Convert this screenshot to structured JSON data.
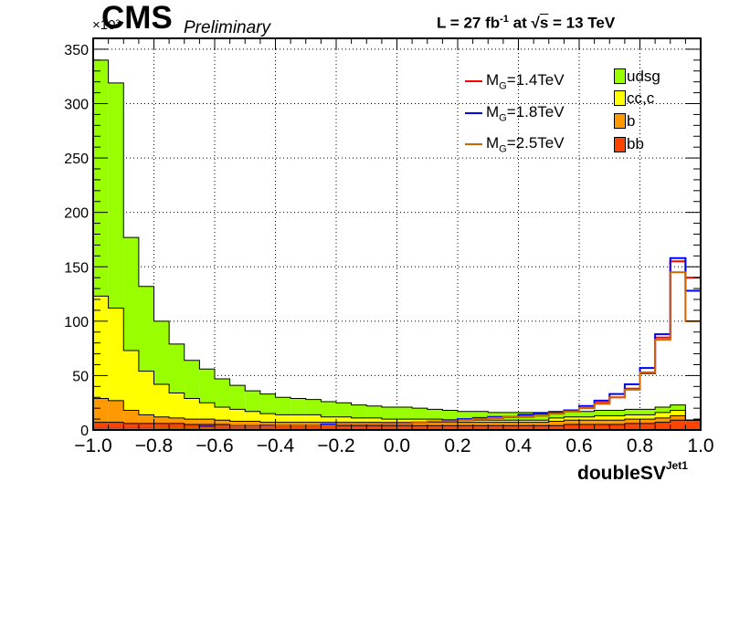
{
  "header": {
    "experiment": "CMS",
    "status": "Preliminary",
    "lumi_prefix": "L = 27 fb",
    "lumi_exp": "-1",
    "lumi_mid": " at  ",
    "sqrt_symbol": "√",
    "sqrt_arg": "s",
    "energy": " = 13 TeV",
    "y_exponent": "×10³"
  },
  "chart_data": {
    "type": "bar",
    "stacked": true,
    "xlabel": "doubleSV",
    "xlabel_sup": "Jet1",
    "ylabel": "",
    "xlim": [
      -1.0,
      1.0
    ],
    "ylim": [
      0,
      360
    ],
    "y_unit_multiplier": "×10³",
    "grid": true,
    "x_ticks": [
      "−1.0",
      "−0.8",
      "−0.6",
      "−0.4",
      "−0.2",
      "0.0",
      "0.2",
      "0.4",
      "0.6",
      "0.8",
      "1.0"
    ],
    "x_tick_values": [
      -1.0,
      -0.8,
      -0.6,
      -0.4,
      -0.2,
      0.0,
      0.2,
      0.4,
      0.6,
      0.8,
      1.0
    ],
    "y_ticks": [
      "0",
      "50",
      "100",
      "150",
      "200",
      "250",
      "300",
      "350"
    ],
    "y_tick_values": [
      0,
      50,
      100,
      150,
      200,
      250,
      300,
      350
    ],
    "bin_width": 0.05,
    "bin_lows": [
      -1.0,
      -0.95,
      -0.9,
      -0.85,
      -0.8,
      -0.75,
      -0.7,
      -0.65,
      -0.6,
      -0.55,
      -0.5,
      -0.45,
      -0.4,
      -0.35,
      -0.3,
      -0.25,
      -0.2,
      -0.15,
      -0.1,
      -0.05,
      0.0,
      0.05,
      0.1,
      0.15,
      0.2,
      0.25,
      0.3,
      0.35,
      0.4,
      0.45,
      0.5,
      0.55,
      0.6,
      0.65,
      0.7,
      0.75,
      0.8,
      0.85,
      0.9,
      0.95
    ],
    "stack": [
      {
        "name": "bb",
        "color": "#ff4400",
        "values": [
          7,
          7,
          6,
          6,
          6,
          6,
          5,
          5,
          5,
          4,
          4,
          4,
          4,
          4,
          4,
          4,
          4,
          4,
          4,
          4,
          4,
          4,
          4,
          4,
          4,
          4,
          4,
          4,
          4,
          4,
          4,
          5,
          5,
          5,
          5,
          6,
          6,
          7,
          9,
          9
        ]
      },
      {
        "name": "b",
        "color": "#ff9900",
        "values": [
          22,
          20,
          12,
          8,
          6,
          5,
          5,
          5,
          4,
          4,
          4,
          3,
          3,
          3,
          3,
          3,
          3,
          3,
          3,
          3,
          3,
          3,
          3,
          3,
          3,
          3,
          3,
          3,
          3,
          3,
          4,
          4,
          4,
          4,
          4,
          4,
          4,
          4,
          4,
          0
        ]
      },
      {
        "name": "cc,c",
        "color": "#ffff00",
        "values": [
          94,
          85,
          55,
          40,
          30,
          23,
          19,
          15,
          12,
          11,
          9,
          8,
          7,
          7,
          7,
          5,
          5,
          4,
          4,
          3,
          3,
          3,
          3,
          2,
          2,
          2,
          2,
          2,
          2,
          2,
          3,
          3,
          3,
          4,
          4,
          4,
          4,
          5,
          5,
          0
        ]
      },
      {
        "name": "udsg",
        "color": "#99ff00",
        "values": [
          217,
          207,
          104,
          78,
          58,
          45,
          35,
          31,
          26,
          22,
          19,
          18,
          16,
          15,
          14,
          14,
          13,
          12,
          11,
          11,
          11,
          10,
          9,
          9,
          8,
          8,
          7,
          7,
          7,
          7,
          6,
          5,
          5,
          5,
          5,
          5,
          5,
          5,
          5,
          0
        ]
      }
    ],
    "signals": [
      {
        "name": "M_G=1.4TeV",
        "label_main": "M",
        "label_sub": "G",
        "label_rest": "=1.4TeV",
        "color": "#ff0000",
        "values": [
          1,
          1,
          1,
          1,
          2,
          2,
          2,
          3,
          3,
          3,
          3,
          3,
          4,
          4,
          4,
          4,
          5,
          5,
          5,
          6,
          6,
          7,
          8,
          8,
          9,
          10,
          11,
          12,
          12,
          13,
          15,
          17,
          20,
          25,
          30,
          38,
          52,
          85,
          155,
          140
        ]
      },
      {
        "name": "M_G=1.8TeV",
        "label_main": "M",
        "label_sub": "G",
        "label_rest": "=1.8TeV",
        "color": "#0000ff",
        "values": [
          1,
          1,
          1,
          1,
          2,
          2,
          2,
          3,
          3,
          3,
          3,
          4,
          4,
          4,
          4,
          5,
          5,
          5,
          5,
          6,
          6,
          7,
          8,
          9,
          10,
          11,
          12,
          12,
          14,
          15,
          16,
          18,
          22,
          27,
          33,
          42,
          57,
          88,
          158,
          128
        ]
      },
      {
        "name": "M_G=2.5TeV",
        "label_main": "M",
        "label_sub": "G",
        "label_rest": "=2.5TeV",
        "color": "#cc6600",
        "values": [
          1,
          1,
          1,
          1,
          2,
          2,
          2,
          2,
          3,
          3,
          3,
          3,
          4,
          4,
          4,
          4,
          5,
          5,
          5,
          6,
          6,
          7,
          8,
          8,
          9,
          10,
          11,
          12,
          12,
          13,
          15,
          17,
          20,
          24,
          30,
          37,
          53,
          83,
          145,
          100
        ]
      }
    ]
  }
}
